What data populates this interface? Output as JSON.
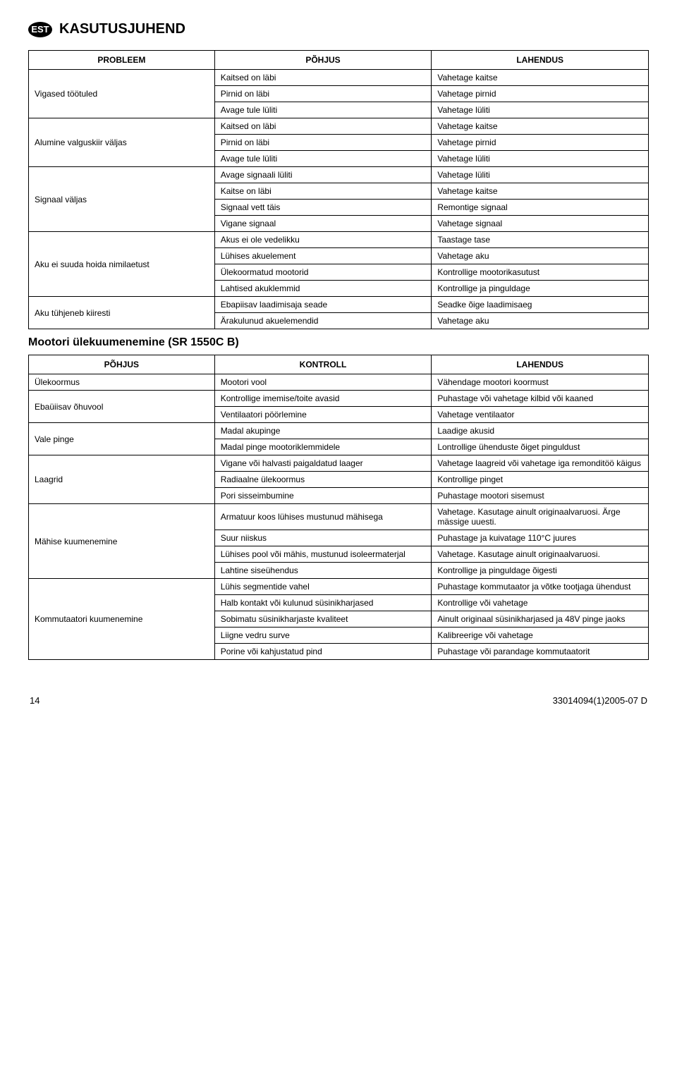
{
  "header": {
    "badge": "EST",
    "title": "KASUTUSJUHEND"
  },
  "table1": {
    "headers": [
      "PROBLEEM",
      "PÕHJUS",
      "LAHENDUS"
    ],
    "groups": [
      {
        "label": "Vigased töötuled",
        "rows": [
          [
            "Kaitsed on läbi",
            "Vahetage kaitse"
          ],
          [
            "Pirnid on läbi",
            "Vahetage pirnid"
          ],
          [
            "Avage tule lüliti",
            "Vahetage lüliti"
          ]
        ]
      },
      {
        "label": "Alumine valguskiir väljas",
        "rows": [
          [
            "Kaitsed on läbi",
            "Vahetage kaitse"
          ],
          [
            "Pirnid on läbi",
            "Vahetage pirnid"
          ],
          [
            "Avage tule lüliti",
            "Vahetage lüliti"
          ]
        ]
      },
      {
        "label": "Signaal väljas",
        "rows": [
          [
            "Avage signaali lüliti",
            "Vahetage lüliti"
          ],
          [
            "Kaitse on läbi",
            "Vahetage kaitse"
          ],
          [
            "Signaal vett täis",
            "Remontige signaal"
          ],
          [
            "Vigane signaal",
            "Vahetage signaal"
          ]
        ]
      },
      {
        "label": "Aku ei suuda hoida nimilaetust",
        "rows": [
          [
            "Akus ei ole vedelikku",
            "Taastage tase"
          ],
          [
            "Lühises akuelement",
            "Vahetage aku"
          ],
          [
            "Ülekoormatud mootorid",
            "Kontrollige mootorikasutust"
          ],
          [
            "Lahtised akuklemmid",
            "Kontrollige ja pinguldage"
          ]
        ]
      },
      {
        "label": "Aku tühjeneb kiiresti",
        "rows": [
          [
            "Ebapiisav laadimisaja seade",
            "Seadke õige laadimisaeg"
          ],
          [
            "Ärakulunud akuelemendid",
            "Vahetage aku"
          ]
        ]
      }
    ]
  },
  "section2_title": "Mootori ülekuumenemine (SR 1550C B)",
  "table2": {
    "headers": [
      "PÕHJUS",
      "KONTROLL",
      "LAHENDUS"
    ],
    "groups": [
      {
        "label": "Ülekoormus",
        "rows": [
          [
            "Mootori vool",
            "Vähendage mootori koormust"
          ]
        ]
      },
      {
        "label": "Ebaüiisav õhuvool",
        "rows": [
          [
            "Kontrollige imemise/toite avasid",
            "Puhastage või vahetage kilbid või kaaned"
          ],
          [
            "Ventilaatori pöörlemine",
            "Vahetage ventilaator"
          ]
        ]
      },
      {
        "label": "Vale pinge",
        "rows": [
          [
            "Madal akupinge",
            "Laadige akusid"
          ],
          [
            "Madal pinge mootoriklemmidele",
            "Lontrollige ühenduste õiget pinguldust"
          ]
        ]
      },
      {
        "label": "Laagrid",
        "rows": [
          [
            "Vigane või  halvasti paigaldatud laager",
            "Vahetage laagreid või vahetage iga remonditöö käigus"
          ],
          [
            "Radiaalne ülekoormus",
            "Kontrollige pinget"
          ],
          [
            "Pori sisseimbumine",
            "Puhastage mootori sisemust"
          ]
        ]
      },
      {
        "label": "Mähise kuumenemine",
        "rows": [
          [
            "Armatuur koos lühises mustunud mähisega",
            "Vahetage. Kasutage ainult originaalvaruosi. Ärge mässige uuesti."
          ],
          [
            "Suur niiskus",
            "Puhastage ja kuivatage 110°C juures"
          ],
          [
            "Lühises pool või mähis, mustunud isoleermaterjal",
            "Vahetage. Kasutage ainult originaalvaruosi."
          ],
          [
            "Lahtine siseühendus",
            "Kontrollige ja pinguldage õigesti"
          ]
        ]
      },
      {
        "label": "Kommutaatori kuumenemine",
        "rows": [
          [
            "Lühis segmentide vahel",
            "Puhastage kommutaator ja võtke tootjaga ühendust"
          ],
          [
            "Halb kontakt või kulunud süsinikharjased",
            "Kontrollige või vahetage"
          ],
          [
            "Sobimatu süsinikharjaste kvaliteet",
            "Ainult originaal süsinikharjased ja 48V pinge jaoks"
          ],
          [
            "Liigne vedru surve",
            "Kalibreerige või vahetage"
          ],
          [
            "Porine või kahjustatud pind",
            "Puhastage või parandage kommutaatorit"
          ]
        ]
      }
    ]
  },
  "footer": {
    "page": "14",
    "doc": "33014094(1)2005-07 D"
  }
}
